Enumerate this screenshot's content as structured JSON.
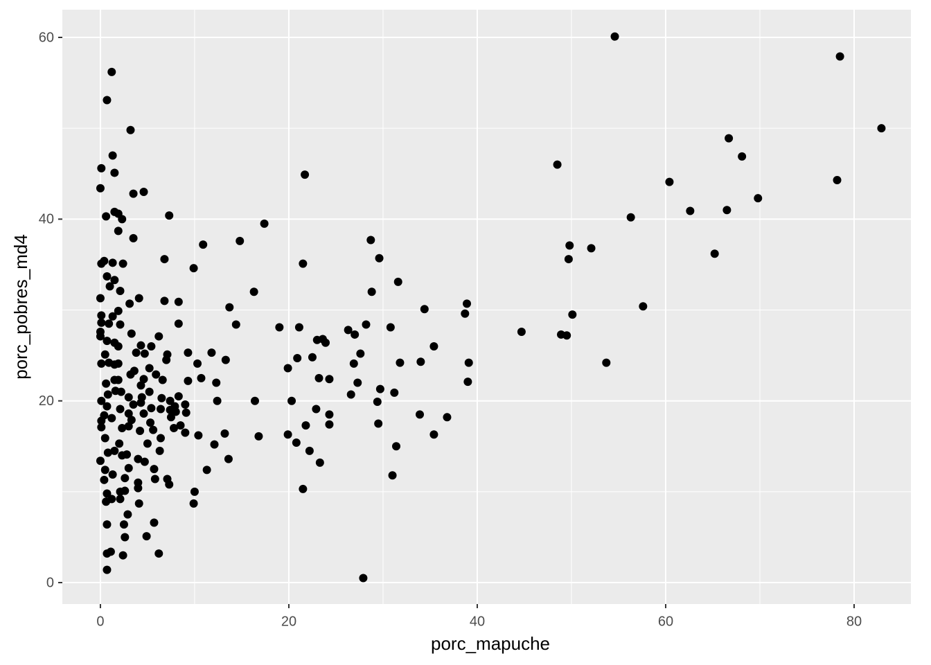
{
  "chart_data": {
    "type": "scatter",
    "x_label": "porc_mapuche",
    "y_label": "porc_pobres_md4",
    "color": "#000000",
    "background": "#ebebeb",
    "grid": true,
    "xlim": [
      -4.04,
      86.03
    ],
    "ylim": [
      -2.36,
      63.05
    ],
    "xticks": [
      0,
      20,
      40,
      60,
      80
    ],
    "yticks": [
      0,
      20,
      40,
      60
    ],
    "minor_xticks": [
      10,
      30,
      50,
      70
    ],
    "minor_yticks": [
      10,
      30,
      50
    ],
    "x": [
      82.9,
      78.5,
      78.2,
      54.6,
      66.7,
      68.1,
      69.8,
      66.5,
      62.6,
      60.4,
      65.2,
      56.3,
      57.6,
      52.1,
      49.8,
      49.7,
      50.1,
      48.9,
      49.5,
      48.5,
      53.7,
      44.7,
      38.9,
      38.7,
      39.1,
      39.0,
      36.8,
      35.4,
      34.4,
      34.0,
      33.9,
      35.4,
      31.6,
      31.8,
      31.2,
      31.4,
      31.0,
      30.8,
      29.6,
      28.7,
      28.8,
      29.7,
      29.4,
      29.5,
      28.2,
      27.9,
      27.6,
      27.0,
      27.3,
      26.9,
      26.6,
      26.3,
      23.9,
      23.6,
      23.0,
      24.3,
      23.2,
      22.5,
      22.9,
      24.3,
      24.3,
      21.8,
      20.8,
      22.2,
      23.3,
      21.5,
      19.9,
      20.3,
      19.9,
      20.9,
      21.1,
      19.0,
      21.7,
      21.5,
      17.4,
      16.3,
      14.8,
      14.4,
      13.7,
      13.3,
      16.4,
      16.8,
      13.2,
      13.6,
      12.4,
      12.3,
      11.8,
      12.1,
      11.3,
      10.9,
      10.7,
      10.3,
      10.4,
      9.9,
      10.0,
      9.9,
      9.3,
      9.3,
      9.0,
      9.1,
      9.0,
      8.3,
      8.3,
      8.3,
      7.9,
      8.0,
      8.5,
      7.8,
      7.3,
      6.8,
      6.8,
      7.1,
      7.0,
      7.4,
      7.4,
      7.5,
      7.1,
      7.3,
      6.6,
      6.5,
      6.4,
      6.4,
      6.2,
      6.3,
      6.2,
      5.7,
      5.8,
      5.7,
      5.6,
      5.9,
      5.4,
      5.2,
      5.2,
      5.4,
      5.3,
      5.0,
      4.9,
      4.6,
      4.7,
      4.6,
      4.6,
      4.3,
      4.1,
      4.3,
      4.4,
      4.3,
      4.2,
      4.0,
      4.7,
      4.0,
      4.0,
      4.1,
      3.8,
      3.6,
      3.5,
      3.3,
      3.5,
      3.5,
      3.2,
      3.1,
      3.3,
      3.2,
      3.0,
      3.0,
      3.0,
      2.8,
      3.0,
      2.9,
      2.6,
      2.4,
      2.6,
      2.6,
      2.3,
      2.4,
      2.1,
      1.9,
      1.9,
      1.9,
      2.2,
      2.1,
      2.3,
      2.0,
      2.3,
      2.5,
      2.1,
      2.1,
      1.9,
      1.9,
      2.1,
      1.9,
      1.5,
      1.5,
      1.3,
      1.2,
      1.3,
      1.5,
      1.3,
      1.5,
      1.5,
      1.6,
      1.2,
      1.5,
      1.3,
      1.2,
      1.1,
      0.7,
      0.7,
      0.6,
      0.4,
      0.7,
      1.0,
      0.9,
      0.7,
      0.5,
      0.9,
      0.6,
      0.8,
      0.7,
      0.4,
      0.5,
      0.8,
      0.5,
      0.4,
      0.7,
      0.6,
      0.7,
      0.7,
      0.1,
      0.0,
      0.1,
      0.0,
      0.1,
      0.1,
      0.0,
      0.0,
      0.1,
      0.1,
      0.1,
      0.1,
      0.0,
      1.5
    ],
    "values": [
      50.0,
      57.9,
      44.3,
      60.1,
      48.9,
      46.9,
      42.3,
      41.0,
      40.9,
      44.1,
      36.2,
      40.2,
      30.4,
      36.8,
      37.1,
      35.6,
      29.5,
      27.3,
      27.2,
      46.0,
      24.2,
      27.6,
      30.7,
      29.6,
      24.2,
      22.1,
      18.2,
      26.0,
      30.1,
      24.3,
      18.5,
      16.3,
      33.1,
      24.2,
      20.9,
      15.0,
      11.8,
      28.1,
      35.7,
      37.7,
      32.0,
      21.3,
      19.9,
      17.5,
      28.4,
      0.5,
      25.2,
      27.3,
      22.0,
      24.1,
      20.7,
      27.8,
      26.4,
      26.8,
      26.7,
      22.4,
      22.5,
      24.8,
      19.1,
      18.5,
      17.4,
      17.3,
      15.4,
      14.5,
      13.2,
      10.3,
      16.3,
      20.0,
      23.6,
      24.7,
      28.1,
      28.1,
      44.9,
      35.1,
      39.5,
      32.0,
      37.6,
      28.4,
      30.3,
      24.5,
      20.0,
      16.1,
      16.4,
      13.6,
      20.0,
      22.0,
      25.3,
      15.2,
      12.4,
      37.2,
      22.5,
      24.1,
      16.2,
      34.6,
      10.0,
      8.7,
      25.3,
      22.2,
      19.6,
      18.7,
      16.5,
      30.9,
      28.5,
      20.5,
      19.4,
      18.8,
      17.3,
      17.0,
      40.4,
      31.0,
      35.6,
      25.1,
      24.5,
      20.0,
      19.0,
      18.2,
      11.4,
      10.8,
      22.3,
      20.3,
      19.1,
      15.9,
      27.1,
      14.5,
      3.2,
      6.6,
      11.4,
      12.5,
      16.8,
      22.9,
      26.0,
      23.6,
      21.0,
      19.2,
      17.6,
      15.3,
      5.1,
      43.0,
      25.2,
      22.4,
      18.6,
      26.1,
      31.3,
      21.7,
      20.4,
      19.8,
      16.7,
      13.6,
      13.3,
      11.0,
      10.4,
      8.7,
      25.3,
      23.3,
      19.6,
      17.9,
      42.8,
      37.9,
      49.8,
      30.7,
      27.4,
      22.9,
      20.4,
      18.6,
      17.2,
      14.1,
      12.6,
      7.5,
      5.0,
      3.0,
      10.1,
      11.5,
      40.0,
      35.1,
      28.4,
      26.0,
      24.1,
      22.3,
      21.0,
      19.1,
      17.0,
      15.3,
      14.0,
      6.4,
      10.0,
      9.2,
      40.6,
      38.7,
      32.1,
      29.9,
      40.8,
      45.1,
      47.0,
      56.2,
      35.2,
      33.3,
      29.3,
      26.4,
      24.0,
      21.1,
      18.1,
      14.5,
      11.9,
      9.2,
      3.4,
      3.2,
      53.1,
      40.3,
      35.4,
      33.7,
      32.6,
      28.5,
      26.6,
      25.1,
      24.2,
      21.9,
      20.7,
      19.4,
      18.4,
      15.9,
      14.3,
      12.4,
      11.3,
      9.8,
      8.9,
      6.4,
      1.4,
      45.6,
      43.4,
      35.1,
      31.3,
      29.4,
      28.6,
      27.6,
      27.1,
      24.1,
      20.0,
      17.8,
      17.1,
      13.4,
      22.3
    ]
  }
}
